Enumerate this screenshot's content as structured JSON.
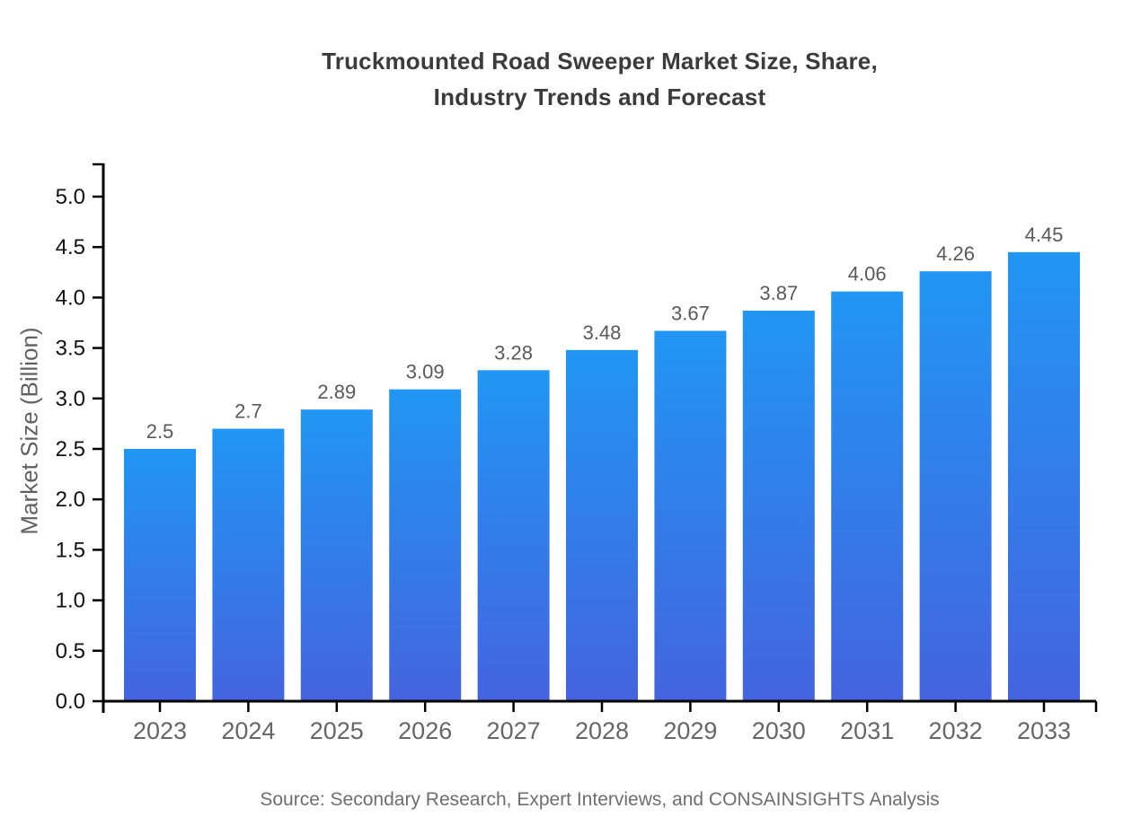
{
  "title": "Truckmounted Road Sweeper Market Size, Share,\nIndustry Trends and Forecast",
  "source": "Source: Secondary Research, Expert Interviews, and CONSAINSIGHTS Analysis",
  "chart_data": {
    "type": "bar",
    "title": "Truckmounted Road Sweeper Market Size, Share, Industry Trends and Forecast",
    "categories": [
      "2023",
      "2024",
      "2025",
      "2026",
      "2027",
      "2028",
      "2029",
      "2030",
      "2031",
      "2032",
      "2033"
    ],
    "values": [
      2.5,
      2.7,
      2.89,
      3.09,
      3.28,
      3.48,
      3.67,
      3.87,
      4.06,
      4.26,
      4.45
    ],
    "value_labels": [
      "2.5",
      "2.7",
      "2.89",
      "3.09",
      "3.28",
      "3.48",
      "3.67",
      "3.87",
      "4.06",
      "4.26",
      "4.45"
    ],
    "xlabel": "",
    "ylabel": "Market Size (Billion)",
    "ylim": [
      0,
      5.3
    ],
    "ytick_step": 0.5,
    "ytick_max": 5.0,
    "grid": false,
    "legend": null,
    "colors": {
      "bar_gradient_top": "#2196F3",
      "bar_gradient_bottom": "#4464DF",
      "axis": "#000000",
      "ytick_label": "#111111",
      "xtick_label": "#666666",
      "value_label": "#595959",
      "title": "#3b3b3b",
      "ylabel": "#606060",
      "source": "#6e6e6e"
    }
  }
}
